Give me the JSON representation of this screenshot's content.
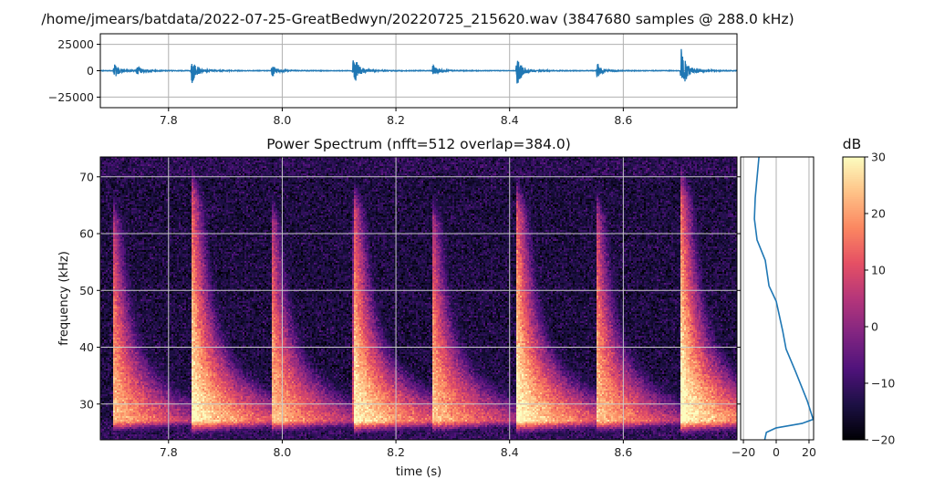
{
  "figure": {
    "title": "/home/jmears/batdata/2022-07-25-GreatBedwyn/20220725_215620.wav (3847680 samples @ 288.0 kHz)"
  },
  "chart_data": [
    {
      "type": "line",
      "panel": "waveform",
      "xlim": [
        7.68,
        8.8
      ],
      "ylim": [
        -35000,
        35000
      ],
      "xticks": [
        7.8,
        8.0,
        8.2,
        8.4,
        8.6
      ],
      "xtick_labels": [
        "7.8",
        "8.0",
        "8.2",
        "8.4",
        "8.6"
      ],
      "yticks": [
        25000,
        0,
        -25000
      ],
      "ytick_labels": [
        "25000",
        "0",
        "−25000"
      ],
      "grid": true,
      "color": "#1f77b4",
      "bursts": [
        {
          "t": 7.704,
          "amplitude": 8000
        },
        {
          "t": 7.745,
          "amplitude": 4500
        },
        {
          "t": 7.841,
          "amplitude": 15000
        },
        {
          "t": 7.982,
          "amplitude": 6500
        },
        {
          "t": 8.125,
          "amplitude": 17000
        },
        {
          "t": 8.265,
          "amplitude": 6500
        },
        {
          "t": 8.413,
          "amplitude": 15000
        },
        {
          "t": 8.554,
          "amplitude": 7500
        },
        {
          "t": 8.702,
          "amplitude": 24000
        }
      ]
    },
    {
      "type": "heatmap",
      "panel": "spectrogram",
      "title": "Power Spectrum (nfft=512 overlap=384.0)",
      "xlabel": "time (s)",
      "ylabel": "frequency (kHz)",
      "xlim": [
        7.68,
        8.8
      ],
      "ylim": [
        23.7,
        73.5
      ],
      "xticks": [
        7.8,
        8.0,
        8.2,
        8.4,
        8.6
      ],
      "xtick_labels": [
        "7.8",
        "8.0",
        "8.2",
        "8.4",
        "8.6"
      ],
      "yticks": [
        30,
        40,
        50,
        60,
        70
      ],
      "ytick_labels": [
        "30",
        "40",
        "50",
        "60",
        "70"
      ],
      "grid": true,
      "colormap": "magma",
      "calls": [
        {
          "onset_s": 7.704,
          "peak_db": 24,
          "low_khz": 27,
          "high_khz": 62
        },
        {
          "onset_s": 7.841,
          "peak_db": 31,
          "low_khz": 27,
          "high_khz": 66
        },
        {
          "onset_s": 7.982,
          "peak_db": 25,
          "low_khz": 27,
          "high_khz": 62
        },
        {
          "onset_s": 8.125,
          "peak_db": 31,
          "low_khz": 27,
          "high_khz": 64
        },
        {
          "onset_s": 8.265,
          "peak_db": 25,
          "low_khz": 27,
          "high_khz": 62
        },
        {
          "onset_s": 8.413,
          "peak_db": 31,
          "low_khz": 27,
          "high_khz": 64
        },
        {
          "onset_s": 8.554,
          "peak_db": 25,
          "low_khz": 27,
          "high_khz": 63
        },
        {
          "onset_s": 8.702,
          "peak_db": 32,
          "low_khz": 27,
          "high_khz": 66
        }
      ]
    },
    {
      "type": "line",
      "panel": "mean-spectrum",
      "xlim": [
        -21.7,
        22.8
      ],
      "ylim": [
        23.7,
        73.5
      ],
      "xticks": [
        -20,
        0,
        20
      ],
      "xtick_labels": [
        "−20",
        "0",
        "20"
      ],
      "grid": true,
      "color": "#1f77b4",
      "x": [
        -10.5,
        -12.8,
        -13.3,
        -11.7,
        -6.7,
        -4.4,
        0,
        4,
        6,
        11.7,
        19,
        22.5,
        16,
        0,
        -6,
        -7
      ],
      "y": [
        73.5,
        66.3,
        62.6,
        58.9,
        55.3,
        50.8,
        48.1,
        42.8,
        39.7,
        35.8,
        30.5,
        27.3,
        26.6,
        25.8,
        25.0,
        23.7
      ]
    },
    {
      "type": "colorbar",
      "label": "dB",
      "range": [
        -20,
        30
      ],
      "ticks": [
        -20,
        -10,
        0,
        10,
        20,
        30
      ],
      "tick_labels": [
        "−20",
        "−10",
        "0",
        "10",
        "20",
        "30"
      ],
      "colormap": "magma"
    }
  ]
}
